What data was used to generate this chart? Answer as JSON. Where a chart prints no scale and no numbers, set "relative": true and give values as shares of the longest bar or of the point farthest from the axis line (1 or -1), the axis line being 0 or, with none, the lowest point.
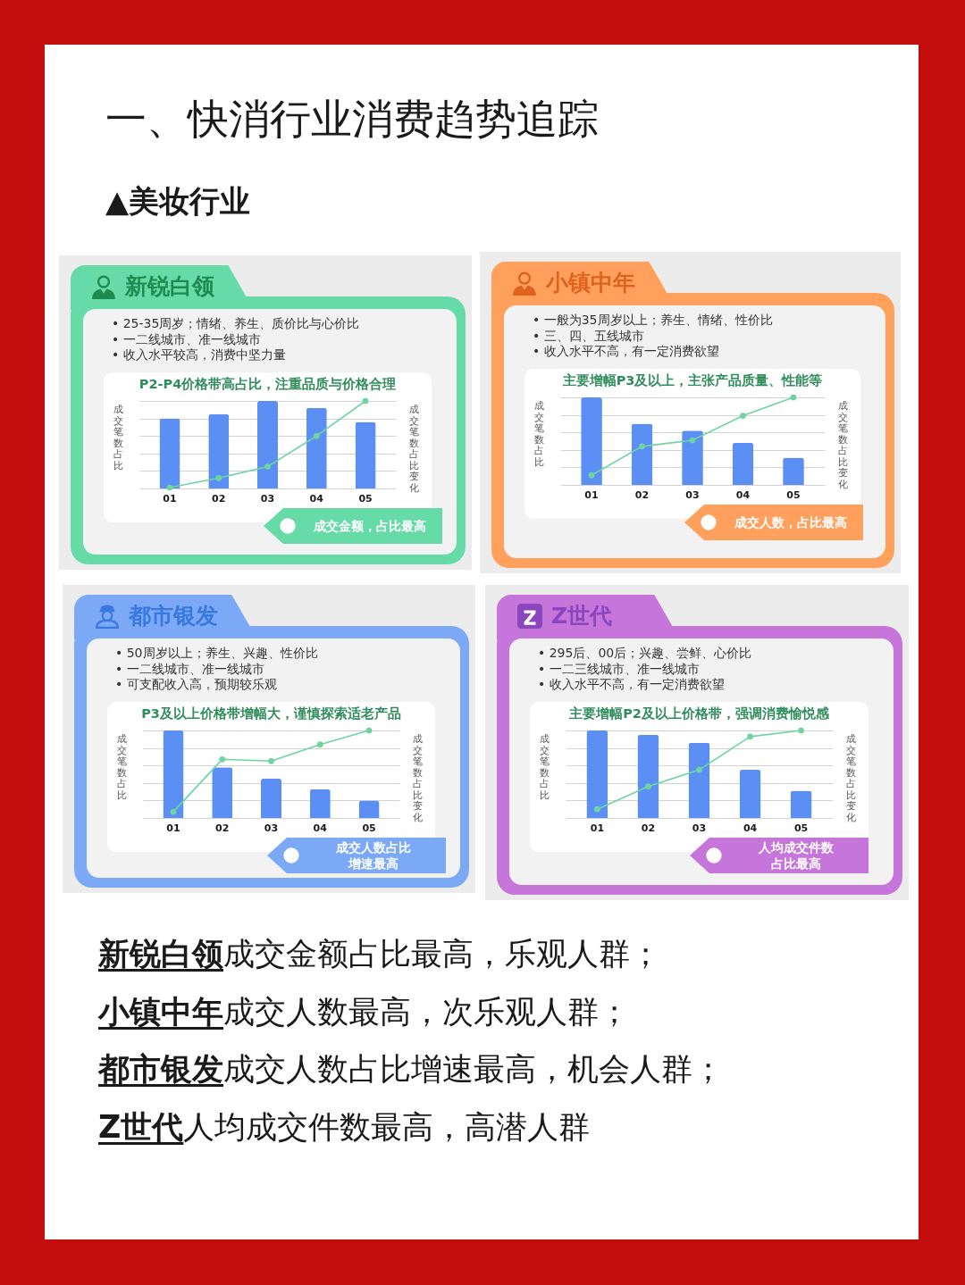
{
  "chart_data": [
    {
      "type": "other",
      "title": "一、快消行业消费趋势追踪",
      "subtitle": "▲美妆行业"
    },
    {
      "type": "bar",
      "title": "新锐白领",
      "subtitle": "P2-P4价格带高占比，注重品质与价格合理",
      "annotations": [
        "• 25-35周岁；情绪、养生、质价比与心价比",
        "• 一二线城市、准一线城市",
        "• 收入水平较高，消费中坚力量",
        "成交金额，占比最高"
      ],
      "categories": [
        "01",
        "02",
        "03",
        "04",
        "05"
      ],
      "ylabel": "成交笔数占比",
      "y2label": "成交笔数占比变化",
      "relative": true,
      "grid": "y",
      "marker": "circle",
      "series": [
        {
          "type": "bar",
          "color": "#5b8ff3",
          "values": [
            0.8,
            0.85,
            1,
            0.92,
            0.76
          ]
        },
        {
          "type": "line",
          "axis": "y2",
          "color": "#6fd4a0",
          "values": [
            0.01,
            0.12,
            0.25,
            0.6,
            1
          ]
        }
      ]
    },
    {
      "type": "bar",
      "title": "小镇中年",
      "subtitle": "主要增幅P3及以上，主张产品质量、性能等",
      "annotations": [
        "• 一般为35周岁以上；养生、情绪、性价比",
        "• 三、四、五线城市",
        "• 收入水平不高，有一定消费欲望",
        "成交人数，占比最高"
      ],
      "categories": [
        "01",
        "02",
        "03",
        "04",
        "05"
      ],
      "ylabel": "成交笔数占比",
      "y2label": "成交笔数占比变化",
      "relative": true,
      "grid": "y",
      "marker": "circle",
      "series": [
        {
          "type": "bar",
          "color": "#5b8ff3",
          "values": [
            1,
            0.7,
            0.62,
            0.48,
            0.31
          ]
        },
        {
          "type": "line",
          "axis": "y2",
          "color": "#6fd4a0",
          "values": [
            0.11,
            0.44,
            0.51,
            0.79,
            1
          ]
        }
      ]
    },
    {
      "type": "bar",
      "title": "都市银发",
      "subtitle": "P3及以上价格带增幅大，谨慎探索适老产品",
      "annotations": [
        "• 50周岁以上；养生、兴趣、性价比",
        "• 一二线城市、准一线城市",
        "• 可支配收入高，预期较乐观",
        "成交人数占比增速最高"
      ],
      "categories": [
        "01",
        "02",
        "03",
        "04",
        "05"
      ],
      "ylabel": "成交笔数占比",
      "y2label": "成交笔数占比变化",
      "relative": true,
      "grid": "y",
      "marker": "circle",
      "series": [
        {
          "type": "bar",
          "color": "#5b8ff3",
          "values": [
            1,
            0.58,
            0.45,
            0.33,
            0.2
          ]
        },
        {
          "type": "line",
          "axis": "y2",
          "color": "#6fd4a0",
          "values": [
            0.07,
            0.67,
            0.65,
            0.84,
            1
          ]
        }
      ]
    },
    {
      "type": "bar",
      "title": "Z世代",
      "subtitle": "主要增幅P2及以上价格带，强调消费愉悦感",
      "annotations": [
        "• 295后、00后；兴趣、尝鲜、心价比",
        "• 一二三线城市、准一线城市",
        "• 收入水平不高，有一定消费欲望",
        "人均成交件数占比最高"
      ],
      "categories": [
        "01",
        "02",
        "03",
        "04",
        "05"
      ],
      "ylabel": "成交笔数占比",
      "y2label": "成交笔数占比变化",
      "relative": true,
      "grid": "y",
      "marker": "circle",
      "series": [
        {
          "type": "bar",
          "color": "#5b8ff3",
          "values": [
            1,
            0.95,
            0.86,
            0.55,
            0.31
          ]
        },
        {
          "type": "line",
          "axis": "y2",
          "color": "#6fd4a0",
          "values": [
            0.1,
            0.36,
            0.55,
            0.93,
            1
          ]
        }
      ]
    },
    {
      "type": "other",
      "annotations": [
        "新锐白领成交金额占比最高，乐观人群；",
        "小镇中年成交人数最高，次乐观人群；",
        "都市银发成交人数占比增速最高，机会人群；",
        "Z世代人均成交件数最高，高潜人群"
      ]
    }
  ]
}
